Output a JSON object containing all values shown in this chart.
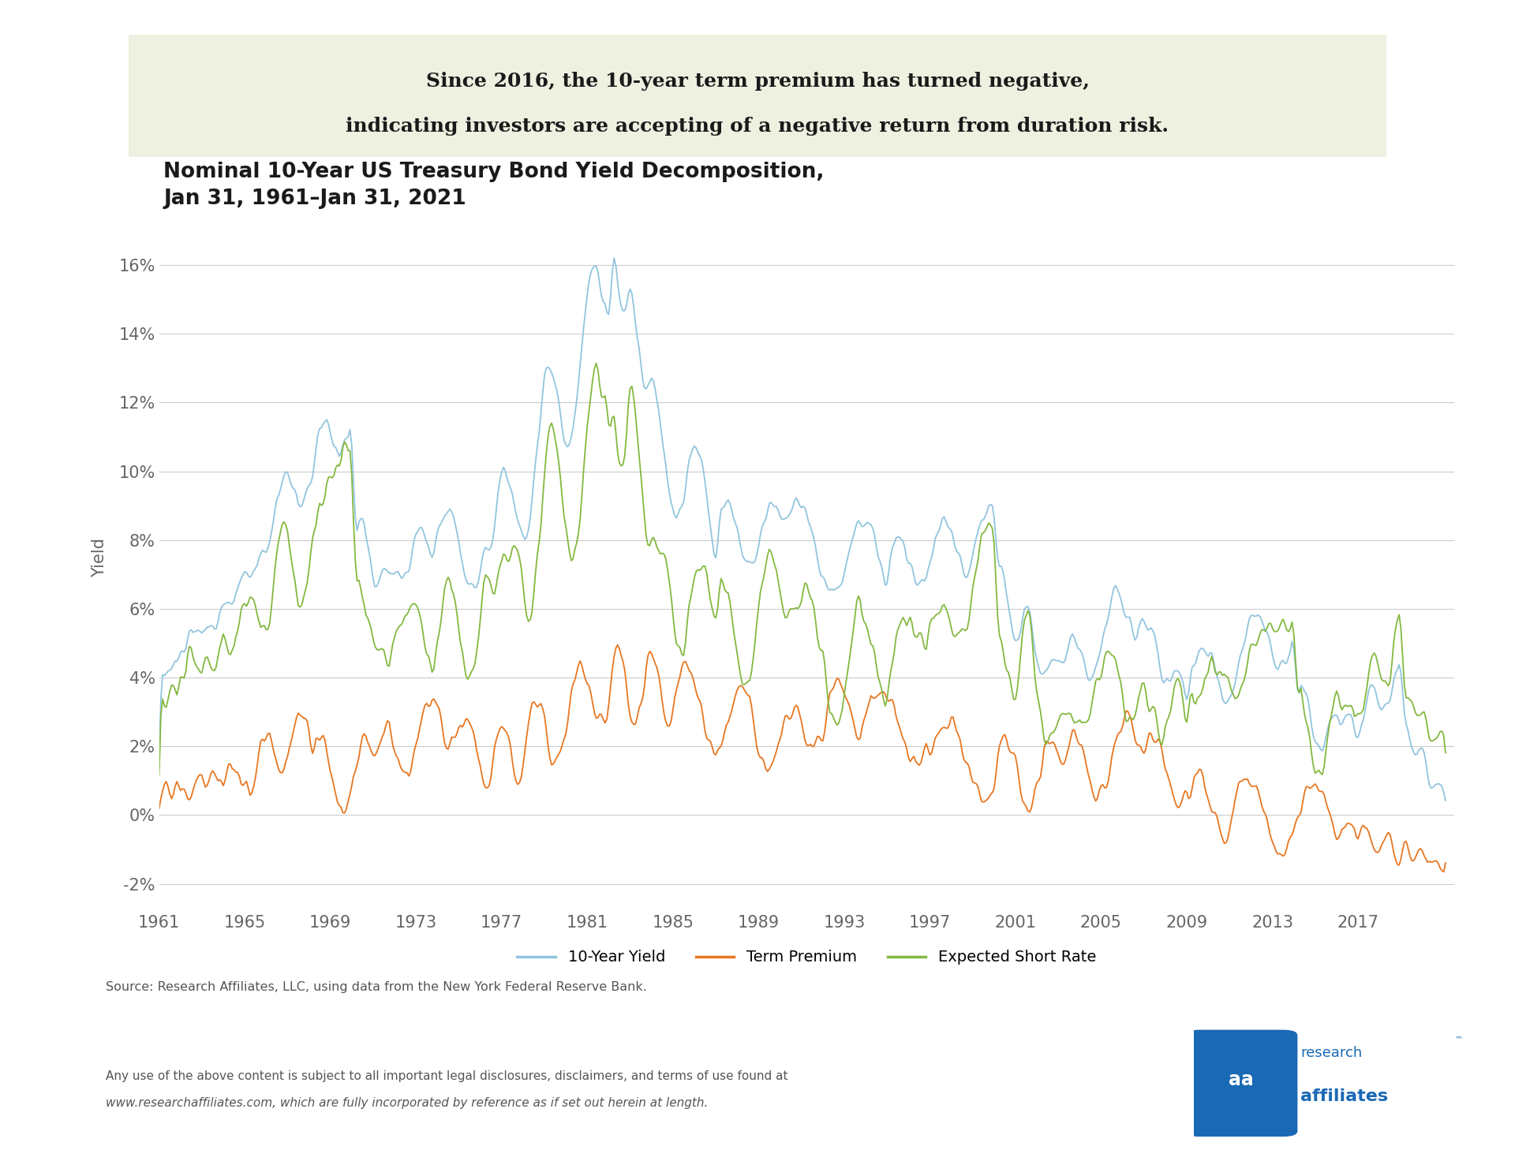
{
  "title_line1": "Nominal 10-Year US Treasury Bond Yield Decomposition,",
  "title_line2": "Jan 31, 1961–Jan 31, 2021",
  "subtitle_line1": "Since 2016, the 10-year term premium has turned negative,",
  "subtitle_line2": "indicating investors are accepting of a negative return from duration risk.",
  "subtitle_bg": "#eef0e0",
  "ylabel": "Yield",
  "yticks": [
    -0.02,
    0.0,
    0.02,
    0.04,
    0.06,
    0.08,
    0.1,
    0.12,
    0.14,
    0.16
  ],
  "ytick_labels": [
    "-2%",
    "0%",
    "2%",
    "4%",
    "6%",
    "8%",
    "10%",
    "12%",
    "14%",
    "16%"
  ],
  "xtick_labels": [
    "1961",
    "1965",
    "1969",
    "1973",
    "1977",
    "1981",
    "1985",
    "1989",
    "1993",
    "1997",
    "2001",
    "2005",
    "2009",
    "2013",
    "2017"
  ],
  "ylim": [
    -0.028,
    0.178
  ],
  "xlim_start": 1961.0,
  "xlim_end": 2021.5,
  "color_yield": "#92C5DE",
  "color_term": "#E87722",
  "color_short": "#84B840",
  "legend_labels": [
    "10-Year Yield",
    "Term Premium",
    "Expected Short Rate"
  ],
  "source_text": "Source: Research Affiliates, LLC, using data from the New York Federal Reserve Bank.",
  "disclaimer_line1": "Any use of the above content is subject to all important legal disclosures, disclaimers, and terms of use found at",
  "disclaimer_line2": "www.researchaffiliates.com, which are fully incorporated by reference as if set out herein at length.",
  "background_color": "#ffffff",
  "grid_color": "#cccccc",
  "title_color": "#1a1a1a",
  "ra_blue": "#1a69b5"
}
